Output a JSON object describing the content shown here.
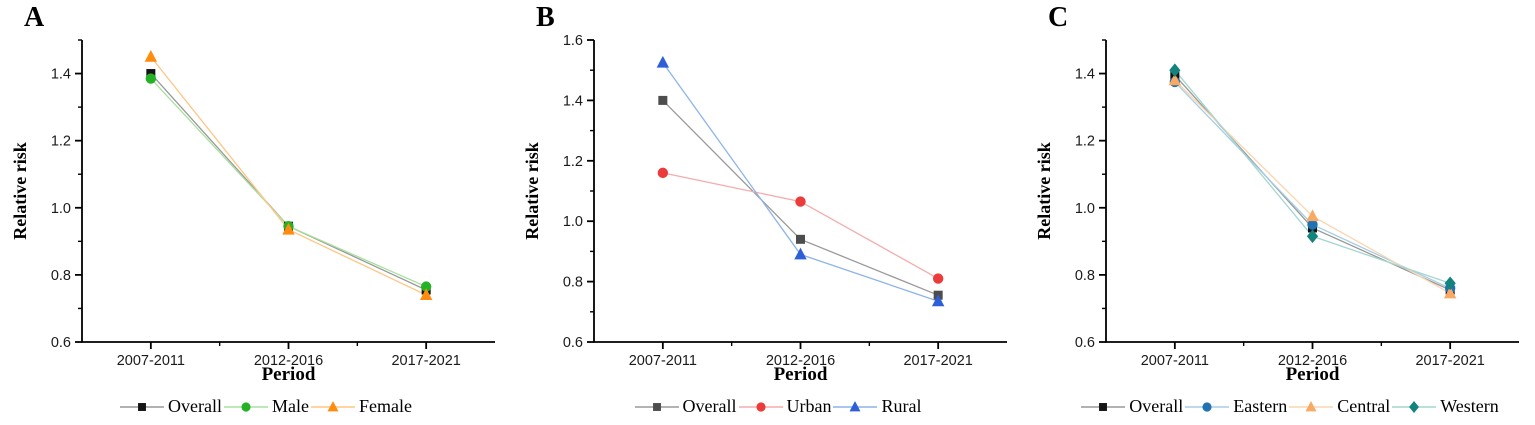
{
  "figure": {
    "background": "#ffffff",
    "axis_color": "#000000",
    "tick_label_color": "#1a1a1a"
  },
  "chart_data": [
    {
      "panel_label": "A",
      "type": "line",
      "xlabel": "Period",
      "ylabel": "Relative risk",
      "categories": [
        "2007-2011",
        "2012-2016",
        "2017-2021"
      ],
      "ylim": [
        0.6,
        1.5
      ],
      "yticks": [
        0.6,
        0.8,
        1.0,
        1.2,
        1.4
      ],
      "y_minor_step": 0.1,
      "grid": false,
      "legend_position": "bottom",
      "series": [
        {
          "name": "Overall",
          "marker": "square",
          "marker_color": "#141414",
          "line_color": "#999999",
          "values": [
            1.4,
            0.945,
            0.755
          ]
        },
        {
          "name": "Male",
          "marker": "circle",
          "marker_color": "#25b125",
          "line_color": "#a9e0a0",
          "values": [
            1.385,
            0.945,
            0.765
          ]
        },
        {
          "name": "Female",
          "marker": "triangle",
          "marker_color": "#ff8c0e",
          "line_color": "#ffc684",
          "values": [
            1.45,
            0.935,
            0.74
          ]
        }
      ]
    },
    {
      "panel_label": "B",
      "type": "line",
      "xlabel": "Period",
      "ylabel": "Relative risk",
      "categories": [
        "2007-2011",
        "2012-2016",
        "2017-2021"
      ],
      "ylim": [
        0.6,
        1.6
      ],
      "yticks": [
        0.6,
        0.8,
        1.0,
        1.2,
        1.4,
        1.6
      ],
      "y_minor_step": 0.1,
      "grid": false,
      "legend_position": "bottom",
      "series": [
        {
          "name": "Overall",
          "marker": "square",
          "marker_color": "#4d4d4d",
          "line_color": "#9a9a9a",
          "values": [
            1.4,
            0.94,
            0.755
          ]
        },
        {
          "name": "Urban",
          "marker": "circle",
          "marker_color": "#ec3b3b",
          "line_color": "#f5abab",
          "values": [
            1.16,
            1.065,
            0.81
          ]
        },
        {
          "name": "Rural",
          "marker": "triangle",
          "marker_color": "#2e5fd9",
          "line_color": "#8db4ea",
          "values": [
            1.525,
            0.89,
            0.735
          ]
        }
      ]
    },
    {
      "panel_label": "C",
      "type": "line",
      "xlabel": "Period",
      "ylabel": "Relative risk",
      "categories": [
        "2007-2011",
        "2012-2016",
        "2017-2021"
      ],
      "ylim": [
        0.6,
        1.5
      ],
      "yticks": [
        0.6,
        0.8,
        1.0,
        1.2,
        1.4
      ],
      "y_minor_step": 0.1,
      "grid": false,
      "legend_position": "bottom",
      "series": [
        {
          "name": "Overall",
          "marker": "square",
          "marker_color": "#141414",
          "line_color": "#999999",
          "values": [
            1.395,
            0.94,
            0.755
          ]
        },
        {
          "name": "Eastern",
          "marker": "circle",
          "marker_color": "#2272b2",
          "line_color": "#a5cde3",
          "values": [
            1.375,
            0.95,
            0.76
          ]
        },
        {
          "name": "Central",
          "marker": "triangle",
          "marker_color": "#f8a963",
          "line_color": "#fbd5b1",
          "values": [
            1.38,
            0.975,
            0.745
          ]
        },
        {
          "name": "Western",
          "marker": "diamond",
          "marker_color": "#12837d",
          "line_color": "#a4d6d0",
          "values": [
            1.41,
            0.915,
            0.775
          ]
        }
      ]
    }
  ]
}
